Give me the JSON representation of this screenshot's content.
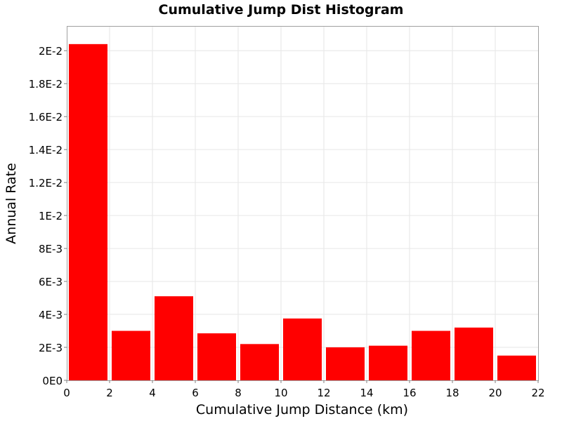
{
  "chart_data": {
    "type": "bar",
    "title": "Cumulative Jump Dist Histogram",
    "xlabel": "Cumulative Jump Distance (km)",
    "ylabel": "Annual Rate",
    "bin_width": 2,
    "x": [
      1,
      3,
      5,
      7,
      9,
      11,
      13,
      15,
      17,
      19,
      21
    ],
    "values": [
      0.0204,
      0.003,
      0.0051,
      0.00285,
      0.0022,
      0.00375,
      0.002,
      0.0021,
      0.003,
      0.0032,
      0.0015
    ],
    "xlim": [
      0,
      22
    ],
    "ylim": [
      0,
      0.0215
    ],
    "x_ticks": [
      0,
      2,
      4,
      6,
      8,
      10,
      12,
      14,
      16,
      18,
      20,
      22
    ],
    "x_tick_labels": [
      "0",
      "2",
      "4",
      "6",
      "8",
      "10",
      "12",
      "14",
      "16",
      "18",
      "20",
      "22"
    ],
    "y_ticks": [
      0,
      0.002,
      0.004,
      0.006,
      0.008,
      0.01,
      0.012,
      0.014,
      0.016,
      0.018,
      0.02
    ],
    "y_tick_labels": [
      "0E0",
      "2E-3",
      "4E-3",
      "6E-3",
      "8E-3",
      "1E-2",
      "1.2E-2",
      "1.4E-2",
      "1.6E-2",
      "1.8E-2",
      "2E-2"
    ],
    "grid": true,
    "legend": "none",
    "bar_color": "#ff0000",
    "grid_color": "#e6e6e6"
  }
}
